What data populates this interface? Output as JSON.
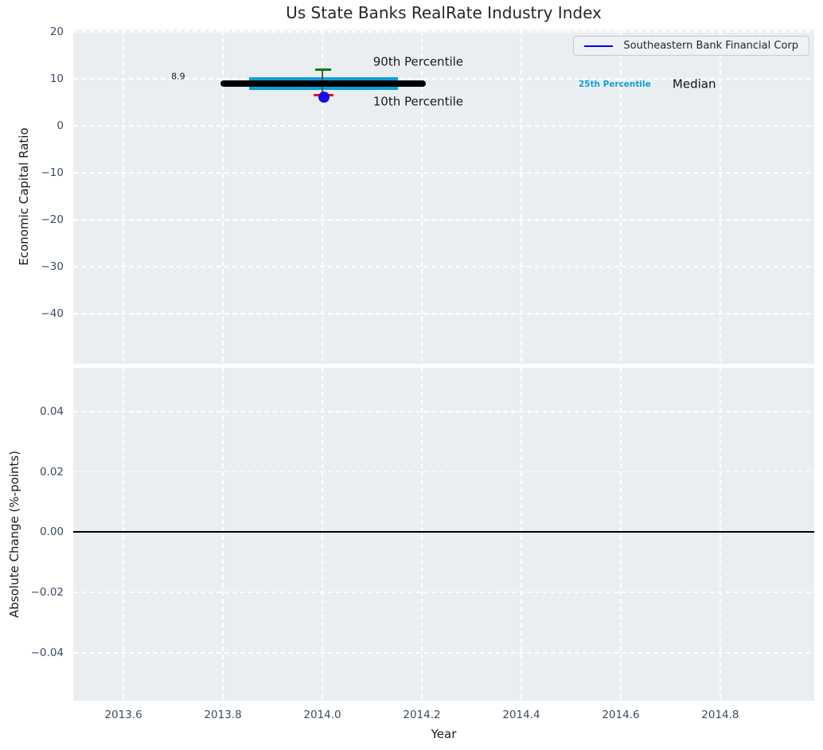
{
  "chart_data": {
    "type": "line",
    "title": "Us State Banks RealRate Industry Index",
    "xlabel": "Year",
    "grid": {
      "on": true,
      "style": "dashed",
      "color": "#ffffff",
      "background": "#ebeef0"
    },
    "xlim": [
      2013.499,
      2014.989
    ],
    "x_ticks": [
      {
        "value": 2013.6,
        "label": "2013.6"
      },
      {
        "value": 2013.8,
        "label": "2013.8"
      },
      {
        "value": 2014.0,
        "label": "2014.0"
      },
      {
        "value": 2014.2,
        "label": "2014.2"
      },
      {
        "value": 2014.4,
        "label": "2014.4"
      },
      {
        "value": 2014.6,
        "label": "2014.6"
      },
      {
        "value": 2014.8,
        "label": "2014.8"
      }
    ],
    "legend": {
      "position": "upper right",
      "entries": [
        {
          "label": "Southeastern Bank Financial Corp",
          "color": "#0000ff"
        }
      ]
    },
    "series": [
      {
        "name": "Southeastern Bank Financial Corp",
        "x": [
          2014.0
        ],
        "y": [
          6.1
        ]
      }
    ],
    "industry_percentiles": {
      "p10": 6.6,
      "median": 8.9,
      "p25_75_band": 9.0,
      "p90": 12.0
    },
    "panels": [
      {
        "id": "top",
        "ylabel": "Economic Capital Ratio",
        "ylim": [
          -50.68,
          20.34
        ],
        "show_x_tick_labels": false,
        "y_ticks": [
          {
            "value": 20,
            "label": "20"
          },
          {
            "value": 10,
            "label": "10"
          },
          {
            "value": 0,
            "label": "0"
          },
          {
            "value": -10,
            "label": "−10"
          },
          {
            "value": -20,
            "label": "−20"
          },
          {
            "value": -30,
            "label": "−30"
          },
          {
            "value": -40,
            "label": "−40"
          }
        ],
        "marks": [
          {
            "name": "percentile-25-75-band",
            "type": "hline",
            "y": 9.0,
            "x0": 2013.853,
            "x1": 2014.152,
            "color": "#0da0d8",
            "lw": 16
          },
          {
            "name": "whisker-line",
            "type": "vline",
            "x": 2014.0,
            "y0": 6.6,
            "y1": 11.95,
            "color": "#555555",
            "lw": 1.5
          },
          {
            "name": "median-line",
            "type": "hline",
            "y": 8.9,
            "x0": 2013.795,
            "x1": 2014.208,
            "color": "#000000",
            "lw": 8,
            "cap": "round"
          },
          {
            "name": "p90-cap",
            "type": "hline",
            "y": 11.95,
            "x0": 2013.985,
            "x1": 2014.017,
            "color": "#008000",
            "lw": 3
          },
          {
            "name": "p10-cap",
            "type": "hline",
            "y": 6.6,
            "x0": 2013.982,
            "x1": 2014.022,
            "color": "#ff0000",
            "lw": 3
          },
          {
            "name": "company-point",
            "type": "dot",
            "x": 2014.003,
            "y": 6.1,
            "r": 7,
            "color": "#1111ee"
          }
        ],
        "annotations": [
          {
            "name": "median-value-label",
            "text": "8.9",
            "x": 2013.696,
            "y": 10.5,
            "size": 11,
            "color": "#1a1a1a",
            "weight": "normal"
          },
          {
            "name": "p90-label",
            "text": "90th Percentile",
            "x": 2014.102,
            "y": 13.55,
            "size": 15,
            "color": "#1a1a1a",
            "weight": "normal"
          },
          {
            "name": "p10-label",
            "text": "10th Percentile",
            "x": 2014.102,
            "y": 5.1,
            "size": 15,
            "color": "#1a1a1a",
            "weight": "normal"
          },
          {
            "name": "p25-label",
            "text": "25th Percentile",
            "x": 2014.515,
            "y": 8.85,
            "size": 10.5,
            "color": "#0d9fd6",
            "weight": "bold"
          },
          {
            "name": "median-label",
            "text": "Median",
            "x": 2014.704,
            "y": 8.85,
            "size": 15,
            "color": "#111111",
            "weight": "normal"
          }
        ]
      },
      {
        "id": "bottom",
        "ylabel": "Absolute Change (%-points)",
        "ylim": [
          -0.0559,
          0.0545
        ],
        "show_x_tick_labels": true,
        "zero_line": true,
        "y_ticks": [
          {
            "value": 0.04,
            "label": "0.04"
          },
          {
            "value": 0.02,
            "label": "0.02"
          },
          {
            "value": 0.0,
            "label": "0.00"
          },
          {
            "value": -0.02,
            "label": "−0.02"
          },
          {
            "value": -0.04,
            "label": "−0.04"
          }
        ],
        "marks": [],
        "annotations": []
      }
    ]
  }
}
